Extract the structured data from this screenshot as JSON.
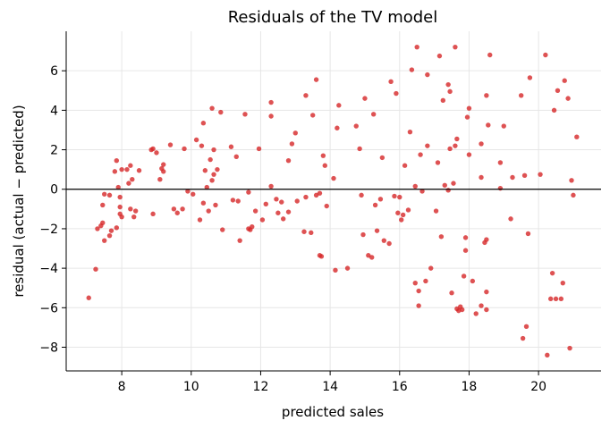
{
  "chart_data": {
    "type": "scatter",
    "title": "Residuals of the TV model",
    "xlabel": "predicted sales",
    "ylabel": "residual (actual − predicted)",
    "xlim": [
      6.4,
      21.8
    ],
    "ylim": [
      -9.2,
      8.0
    ],
    "xticks": [
      8,
      10,
      12,
      14,
      16,
      18,
      20
    ],
    "yticks": [
      -8,
      -6,
      -4,
      -2,
      0,
      2,
      4,
      6
    ],
    "xtick_labels": [
      "8",
      "10",
      "12",
      "14",
      "16",
      "18",
      "20"
    ],
    "ytick_labels": [
      "−8",
      "−6",
      "−4",
      "−2",
      "0",
      "2",
      "4",
      "6"
    ],
    "grid": true,
    "reference_line_y": 0,
    "point_color": "#d62728",
    "points": [
      [
        7.05,
        -5.5
      ],
      [
        7.25,
        -4.05
      ],
      [
        7.3,
        -2.0
      ],
      [
        7.4,
        -1.85
      ],
      [
        7.45,
        -1.7
      ],
      [
        7.45,
        -0.8
      ],
      [
        7.5,
        -2.6
      ],
      [
        7.5,
        -0.25
      ],
      [
        7.65,
        -0.3
      ],
      [
        7.65,
        -2.35
      ],
      [
        7.7,
        -2.1
      ],
      [
        7.8,
        0.9
      ],
      [
        7.85,
        1.45
      ],
      [
        7.85,
        -1.95
      ],
      [
        7.9,
        0.1
      ],
      [
        7.95,
        -0.4
      ],
      [
        7.95,
        -0.9
      ],
      [
        7.95,
        -1.25
      ],
      [
        8.0,
        -1.4
      ],
      [
        8.0,
        1.0
      ],
      [
        8.15,
        1.0
      ],
      [
        8.2,
        0.3
      ],
      [
        8.25,
        1.2
      ],
      [
        8.25,
        -1.0
      ],
      [
        8.3,
        0.5
      ],
      [
        8.35,
        -1.4
      ],
      [
        8.4,
        -1.1
      ],
      [
        8.5,
        0.95
      ],
      [
        8.85,
        2.0
      ],
      [
        8.9,
        2.05
      ],
      [
        8.9,
        -1.25
      ],
      [
        9.0,
        1.85
      ],
      [
        9.1,
        0.5
      ],
      [
        9.15,
        1.05
      ],
      [
        9.2,
        1.25
      ],
      [
        9.2,
        0.9
      ],
      [
        9.4,
        2.25
      ],
      [
        9.5,
        -1.0
      ],
      [
        9.6,
        -1.2
      ],
      [
        9.75,
        -1.0
      ],
      [
        9.8,
        2.05
      ],
      [
        9.9,
        -0.1
      ],
      [
        10.05,
        -0.25
      ],
      [
        10.15,
        2.5
      ],
      [
        10.25,
        -1.55
      ],
      [
        10.3,
        2.2
      ],
      [
        10.35,
        3.35
      ],
      [
        10.35,
        -0.7
      ],
      [
        10.4,
        0.95
      ],
      [
        10.45,
        0.1
      ],
      [
        10.5,
        -1.1
      ],
      [
        10.55,
        1.5
      ],
      [
        10.6,
        4.1
      ],
      [
        10.6,
        0.45
      ],
      [
        10.65,
        0.75
      ],
      [
        10.65,
        2.0
      ],
      [
        10.7,
        -0.8
      ],
      [
        10.75,
        1.0
      ],
      [
        10.85,
        3.9
      ],
      [
        10.9,
        -2.05
      ],
      [
        11.15,
        2.15
      ],
      [
        11.2,
        -0.55
      ],
      [
        11.3,
        1.65
      ],
      [
        11.35,
        -0.6
      ],
      [
        11.4,
        -2.6
      ],
      [
        11.55,
        3.8
      ],
      [
        11.65,
        -0.15
      ],
      [
        11.65,
        -2.0
      ],
      [
        11.7,
        -2.05
      ],
      [
        11.75,
        -1.9
      ],
      [
        11.85,
        -1.1
      ],
      [
        11.95,
        2.05
      ],
      [
        12.05,
        -1.55
      ],
      [
        12.15,
        -0.75
      ],
      [
        12.3,
        4.4
      ],
      [
        12.3,
        3.7
      ],
      [
        12.3,
        0.15
      ],
      [
        12.45,
        -0.5
      ],
      [
        12.5,
        -1.2
      ],
      [
        12.6,
        -0.65
      ],
      [
        12.65,
        -1.5
      ],
      [
        12.8,
        1.45
      ],
      [
        12.8,
        -1.15
      ],
      [
        12.9,
        2.3
      ],
      [
        13.0,
        2.85
      ],
      [
        13.05,
        -0.6
      ],
      [
        13.25,
        -2.15
      ],
      [
        13.3,
        4.75
      ],
      [
        13.3,
        -0.4
      ],
      [
        13.45,
        -2.2
      ],
      [
        13.5,
        3.75
      ],
      [
        13.6,
        -0.3
      ],
      [
        13.6,
        5.55
      ],
      [
        13.7,
        -0.2
      ],
      [
        13.7,
        -3.35
      ],
      [
        13.75,
        -3.4
      ],
      [
        13.8,
        1.7
      ],
      [
        13.85,
        1.2
      ],
      [
        13.9,
        -0.85
      ],
      [
        14.1,
        0.55
      ],
      [
        14.15,
        -4.1
      ],
      [
        14.2,
        3.1
      ],
      [
        14.25,
        4.25
      ],
      [
        14.5,
        -4.0
      ],
      [
        14.75,
        3.2
      ],
      [
        14.85,
        2.05
      ],
      [
        14.9,
        -0.3
      ],
      [
        14.95,
        -2.3
      ],
      [
        15.0,
        4.6
      ],
      [
        15.1,
        -3.35
      ],
      [
        15.2,
        -3.45
      ],
      [
        15.25,
        3.8
      ],
      [
        15.3,
        -0.8
      ],
      [
        15.35,
        -2.1
      ],
      [
        15.45,
        -0.5
      ],
      [
        15.5,
        1.6
      ],
      [
        15.55,
        -2.6
      ],
      [
        15.7,
        -2.75
      ],
      [
        15.75,
        5.45
      ],
      [
        15.85,
        -0.35
      ],
      [
        15.9,
        4.85
      ],
      [
        15.95,
        -1.2
      ],
      [
        16.0,
        -0.4
      ],
      [
        16.05,
        -1.55
      ],
      [
        16.1,
        -1.3
      ],
      [
        16.15,
        1.2
      ],
      [
        16.25,
        -1.05
      ],
      [
        16.3,
        2.9
      ],
      [
        16.35,
        6.05
      ],
      [
        16.45,
        0.15
      ],
      [
        16.45,
        -4.75
      ],
      [
        16.5,
        7.2
      ],
      [
        16.55,
        -5.15
      ],
      [
        16.55,
        -5.9
      ],
      [
        16.6,
        1.75
      ],
      [
        16.65,
        -0.1
      ],
      [
        16.75,
        -4.65
      ],
      [
        16.8,
        2.2
      ],
      [
        16.8,
        5.8
      ],
      [
        16.9,
        -4.0
      ],
      [
        17.05,
        -1.1
      ],
      [
        17.1,
        1.35
      ],
      [
        17.15,
        6.75
      ],
      [
        17.25,
        4.5
      ],
      [
        17.3,
        0.2
      ],
      [
        17.4,
        -0.05
      ],
      [
        17.4,
        5.3
      ],
      [
        17.45,
        4.95
      ],
      [
        17.45,
        2.05
      ],
      [
        17.5,
        -5.25
      ],
      [
        17.55,
        0.3
      ],
      [
        17.6,
        7.2
      ],
      [
        17.6,
        2.2
      ],
      [
        17.65,
        2.55
      ],
      [
        17.65,
        -6.05
      ],
      [
        17.7,
        -6.15
      ],
      [
        17.75,
        -5.95
      ],
      [
        17.8,
        -6.1
      ],
      [
        17.85,
        -4.4
      ],
      [
        17.9,
        -2.45
      ],
      [
        17.9,
        -3.1
      ],
      [
        17.95,
        3.65
      ],
      [
        18.0,
        1.75
      ],
      [
        18.0,
        4.1
      ],
      [
        18.1,
        -4.65
      ],
      [
        18.2,
        -6.3
      ],
      [
        18.35,
        -5.9
      ],
      [
        18.35,
        0.6
      ],
      [
        18.35,
        2.3
      ],
      [
        18.45,
        -2.7
      ],
      [
        18.5,
        4.75
      ],
      [
        18.5,
        -2.55
      ],
      [
        18.5,
        -5.2
      ],
      [
        18.5,
        -6.1
      ],
      [
        18.55,
        3.25
      ],
      [
        18.6,
        6.8
      ],
      [
        18.9,
        1.35
      ],
      [
        18.9,
        0.05
      ],
      [
        19.0,
        3.2
      ],
      [
        19.2,
        -1.5
      ],
      [
        19.25,
        0.6
      ],
      [
        19.5,
        4.75
      ],
      [
        19.55,
        -7.55
      ],
      [
        19.6,
        0.7
      ],
      [
        19.65,
        -6.95
      ],
      [
        19.7,
        -2.25
      ],
      [
        19.75,
        5.65
      ],
      [
        20.05,
        0.75
      ],
      [
        20.2,
        6.8
      ],
      [
        20.25,
        -8.4
      ],
      [
        20.4,
        -4.25
      ],
      [
        20.45,
        4.0
      ],
      [
        20.5,
        -5.55
      ],
      [
        20.55,
        5.0
      ],
      [
        20.65,
        -5.55
      ],
      [
        20.7,
        -4.75
      ],
      [
        20.75,
        5.5
      ],
      [
        20.85,
        4.6
      ],
      [
        20.9,
        -8.05
      ],
      [
        20.95,
        0.45
      ],
      [
        21.0,
        -0.3
      ],
      [
        21.1,
        2.65
      ],
      [
        20.35,
        -5.55
      ],
      [
        17.2,
        -2.4
      ]
    ]
  }
}
